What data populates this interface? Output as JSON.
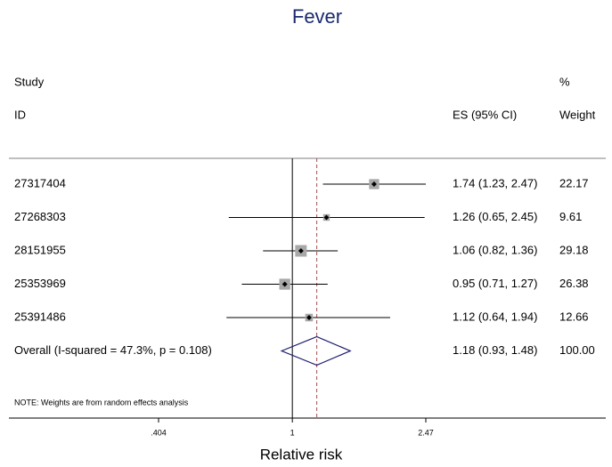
{
  "chart_data": {
    "type": "forest",
    "title": "Fever",
    "xlabel": "Relative risk",
    "study_header": "Study",
    "id_header": "ID",
    "es_header": "ES (95% CI)",
    "pct_header": "%",
    "weight_header": "Weight",
    "categories": [
      "27317404",
      "27268303",
      "28151955",
      "25353969",
      "25391486"
    ],
    "values": [
      1.74,
      1.26,
      1.06,
      0.95,
      1.12
    ],
    "lower": [
      1.23,
      0.65,
      0.82,
      0.71,
      0.64
    ],
    "upper": [
      2.47,
      2.45,
      1.36,
      1.27,
      1.94
    ],
    "weights": [
      22.17,
      9.61,
      29.18,
      26.38,
      12.66
    ],
    "value_labels": [
      "1.74 (1.23, 2.47)",
      "1.26 (0.65, 2.45)",
      "1.06 (0.82, 1.36)",
      "0.95 (0.71, 1.27)",
      "1.12 (0.64, 1.94)"
    ],
    "weight_labels": [
      "22.17",
      "9.61",
      "29.18",
      "26.38",
      "12.66"
    ],
    "overall": {
      "label": "Overall  (I-squared = 47.3%, p = 0.108)",
      "value": 1.18,
      "lower": 0.93,
      "upper": 1.48,
      "value_label": "1.18 (0.93, 1.48)",
      "weight": {
        "value": 100,
        "label": "100.00"
      }
    },
    "note": "NOTE: Weights are from random effects analysis",
    "xlim": [
      0.404,
      2.47
    ],
    "log_x": true,
    "xticks": [
      {
        "value": 0.404,
        "label": ".404"
      },
      1,
      2.47
    ],
    "box_color": "#a8a8a8",
    "point_color": "#000000",
    "diamond_color": "#1a1a6e",
    "overall_line_color": "#a05050"
  }
}
